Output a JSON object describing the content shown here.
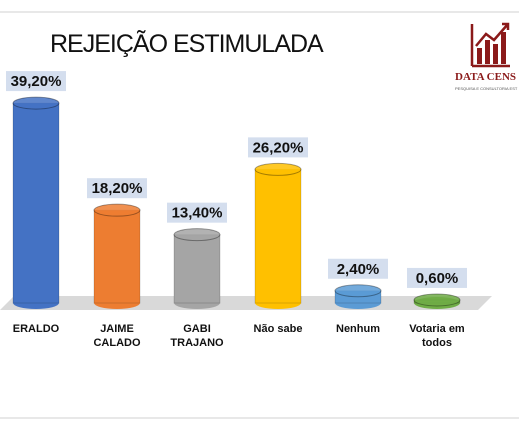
{
  "chart_data": {
    "type": "bar3d",
    "title": "REJEIÇÃO ESTIMULADA",
    "logo": {
      "name": "DATA CENS",
      "tagline": "PESQUISA E CONSULTORIA EST"
    },
    "categories": [
      "ERALDO",
      "JAIME CALADO",
      "GABI TRAJANO",
      "Não sabe",
      "Nenhum",
      "Votaria em todos"
    ],
    "values": [
      39.2,
      18.2,
      13.4,
      26.2,
      2.4,
      0.6
    ],
    "value_labels": [
      "39,20%",
      "18,20%",
      "13,40%",
      "26,20%",
      "2,40%",
      "0,60%"
    ],
    "colors": [
      "#4472c4",
      "#ed7d31",
      "#a5a5a5",
      "#ffc000",
      "#5b9bd5",
      "#70ad47"
    ],
    "ylim": [
      0,
      40
    ]
  }
}
